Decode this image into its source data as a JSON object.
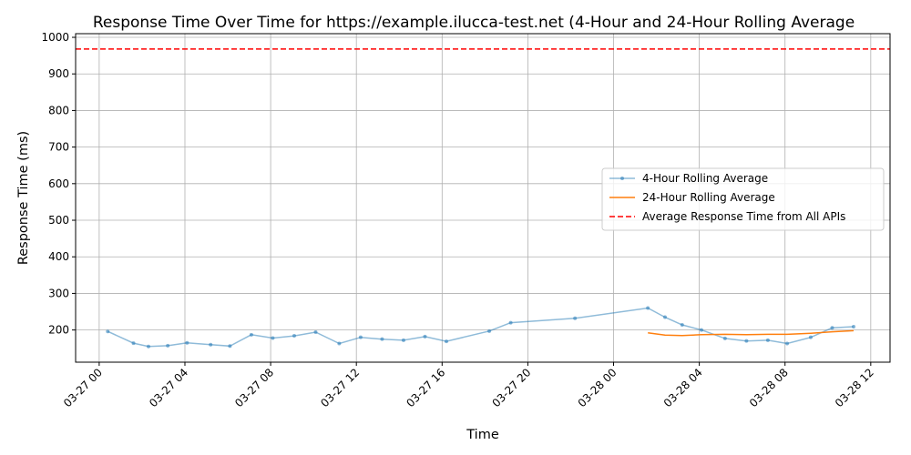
{
  "chart_data": {
    "type": "line",
    "title": "Response Time Over Time for https://example.ilucca-test.net (4-Hour and 24-Hour Rolling Average",
    "xlabel": "Time",
    "ylabel": "Response Time (ms)",
    "xlim": [
      "2024-03-26T22:54",
      "2024-03-28T12:54"
    ],
    "ylim": [
      112,
      1010
    ],
    "grid": true,
    "legend_position": "center-right",
    "x_ticks": [
      {
        "t": "2024-03-27T00:00",
        "label": "03-27 00"
      },
      {
        "t": "2024-03-27T04:00",
        "label": "03-27 04"
      },
      {
        "t": "2024-03-27T08:00",
        "label": "03-27 08"
      },
      {
        "t": "2024-03-27T12:00",
        "label": "03-27 12"
      },
      {
        "t": "2024-03-27T16:00",
        "label": "03-27 16"
      },
      {
        "t": "2024-03-27T20:00",
        "label": "03-27 20"
      },
      {
        "t": "2024-03-28T00:00",
        "label": "03-28 00"
      },
      {
        "t": "2024-03-28T04:00",
        "label": "03-28 04"
      },
      {
        "t": "2024-03-28T08:00",
        "label": "03-28 08"
      },
      {
        "t": "2024-03-28T12:00",
        "label": "03-28 12"
      }
    ],
    "y_ticks": [
      200,
      300,
      400,
      500,
      600,
      700,
      800,
      900,
      1000
    ],
    "series": [
      {
        "name": "4-Hour Rolling Average",
        "color": "#1f77b4",
        "marker": "dot",
        "points": [
          [
            "2024-03-27T00:24",
            196
          ],
          [
            "2024-03-27T01:36",
            164
          ],
          [
            "2024-03-27T02:18",
            155
          ],
          [
            "2024-03-27T03:12",
            157
          ],
          [
            "2024-03-27T04:06",
            165
          ],
          [
            "2024-03-27T05:12",
            160
          ],
          [
            "2024-03-27T06:06",
            156
          ],
          [
            "2024-03-27T07:06",
            187
          ],
          [
            "2024-03-27T08:06",
            178
          ],
          [
            "2024-03-27T09:06",
            184
          ],
          [
            "2024-03-27T10:06",
            194
          ],
          [
            "2024-03-27T11:12",
            163
          ],
          [
            "2024-03-27T12:12",
            180
          ],
          [
            "2024-03-27T13:12",
            175
          ],
          [
            "2024-03-27T14:12",
            172
          ],
          [
            "2024-03-27T15:12",
            182
          ],
          [
            "2024-03-27T16:12",
            169
          ],
          [
            "2024-03-27T18:12",
            197
          ],
          [
            "2024-03-27T19:12",
            220
          ],
          [
            "2024-03-27T22:12",
            232
          ],
          [
            "2024-03-28T01:36",
            260
          ],
          [
            "2024-03-28T02:24",
            235
          ],
          [
            "2024-03-28T03:12",
            214
          ],
          [
            "2024-03-28T04:06",
            200
          ],
          [
            "2024-03-28T05:12",
            177
          ],
          [
            "2024-03-28T06:12",
            170
          ],
          [
            "2024-03-28T07:12",
            172
          ],
          [
            "2024-03-28T08:06",
            163
          ],
          [
            "2024-03-28T09:12",
            180
          ],
          [
            "2024-03-28T10:12",
            206
          ],
          [
            "2024-03-28T11:12",
            209
          ]
        ]
      },
      {
        "name": "24-Hour Rolling Average",
        "color": "#ff7f0e",
        "marker": "none",
        "points": [
          [
            "2024-03-28T01:36",
            192
          ],
          [
            "2024-03-28T02:24",
            186
          ],
          [
            "2024-03-28T03:12",
            185
          ],
          [
            "2024-03-28T04:06",
            187
          ],
          [
            "2024-03-28T05:12",
            188
          ],
          [
            "2024-03-28T06:12",
            187
          ],
          [
            "2024-03-28T07:12",
            188
          ],
          [
            "2024-03-28T08:06",
            188
          ],
          [
            "2024-03-28T09:12",
            191
          ],
          [
            "2024-03-28T10:12",
            195
          ],
          [
            "2024-03-28T11:12",
            198
          ]
        ]
      }
    ],
    "reference_lines": [
      {
        "name": "Average Response Time from All APIs",
        "y": 968,
        "color": "#ff0000",
        "style": "dashed"
      }
    ],
    "colors": {
      "grid": "#b0b0b0",
      "axes": "#000000"
    }
  }
}
